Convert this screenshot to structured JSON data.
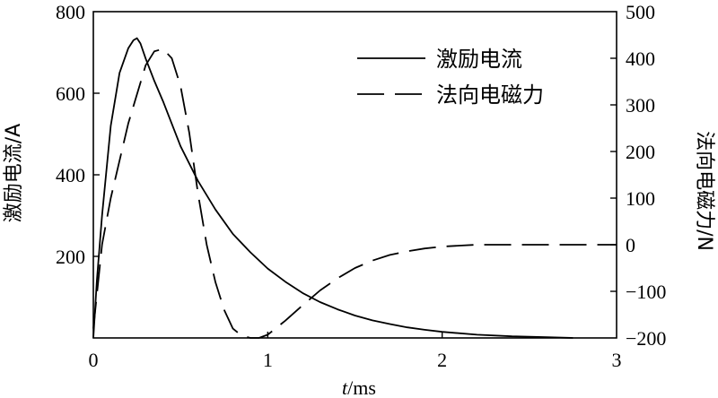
{
  "chart_data": {
    "type": "line",
    "x_axis": {
      "label_italic": "t",
      "label_rest": "/ms",
      "range": [
        0,
        3
      ],
      "ticks": [
        "0",
        "1",
        "2",
        "3"
      ]
    },
    "y_left": {
      "label": "激励电流/A",
      "range": [
        0,
        800
      ],
      "ticks": [
        "200",
        "400",
        "600",
        "800"
      ]
    },
    "y_right": {
      "label": "法向电磁力/N",
      "range": [
        -200,
        500
      ],
      "ticks": [
        "−200",
        "−100",
        "0",
        "100",
        "200",
        "300",
        "400",
        "500"
      ]
    },
    "legend_position": "top-right",
    "series": [
      {
        "name": "激励电流",
        "axis": "left",
        "style": "solid",
        "x": [
          0,
          0.02,
          0.05,
          0.1,
          0.15,
          0.2,
          0.23,
          0.25,
          0.27,
          0.3,
          0.35,
          0.4,
          0.5,
          0.6,
          0.7,
          0.8,
          0.9,
          1.0,
          1.1,
          1.2,
          1.3,
          1.4,
          1.5,
          1.6,
          1.7,
          1.8,
          1.9,
          2.0,
          2.2,
          2.4,
          2.6,
          2.75
        ],
        "y": [
          0,
          140,
          300,
          520,
          650,
          710,
          730,
          735,
          722,
          685,
          630,
          580,
          470,
          385,
          315,
          255,
          210,
          170,
          138,
          110,
          88,
          70,
          55,
          43,
          34,
          26,
          20,
          15,
          8,
          4,
          2,
          0
        ]
      },
      {
        "name": "法向电磁力",
        "axis": "right",
        "style": "dashed",
        "x": [
          0,
          0.05,
          0.1,
          0.2,
          0.3,
          0.35,
          0.4,
          0.45,
          0.5,
          0.55,
          0.6,
          0.65,
          0.7,
          0.75,
          0.8,
          0.85,
          0.9,
          0.95,
          1.0,
          1.1,
          1.2,
          1.3,
          1.4,
          1.5,
          1.6,
          1.7,
          1.8,
          1.9,
          2.0,
          2.1,
          2.2,
          2.4,
          2.6,
          2.8,
          3.0
        ],
        "y": [
          -180,
          0,
          100,
          260,
          385,
          415,
          420,
          400,
          340,
          240,
          110,
          0,
          -80,
          -140,
          -180,
          -195,
          -200,
          -200,
          -193,
          -163,
          -130,
          -98,
          -72,
          -50,
          -34,
          -22,
          -14,
          -8,
          -4,
          -2,
          0,
          0,
          0,
          0,
          0
        ]
      }
    ]
  }
}
